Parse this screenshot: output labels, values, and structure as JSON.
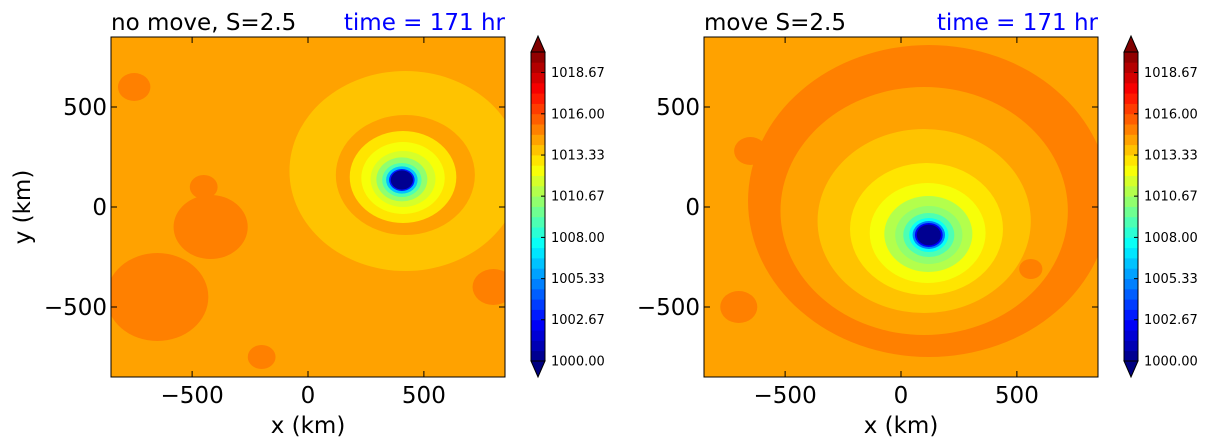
{
  "chart_data": [
    {
      "type": "contourf",
      "title_left": "no move, S=2.5",
      "title_right": "time = 171 hr",
      "title_right_color": "#0000ff",
      "xlabel": "x (km)",
      "ylabel": "y (km)",
      "xlim": [
        -850,
        850
      ],
      "ylim": [
        -850,
        850
      ],
      "xticks": [
        -500,
        0,
        500
      ],
      "yticks": [
        -500,
        0,
        500
      ],
      "xtick_labels": [
        "−500",
        "0",
        "500"
      ],
      "ytick_labels": [
        "−500",
        "0",
        "500"
      ],
      "background_value": 1014.3,
      "features": [
        {
          "kind": "ring",
          "x": 420,
          "y": 180,
          "r": 500,
          "value": 1013.9
        },
        {
          "kind": "ring",
          "x": 420,
          "y": 160,
          "r": 300,
          "value": 1014.4
        },
        {
          "kind": "ring",
          "x": 410,
          "y": 150,
          "r": 230,
          "value": 1013.3
        },
        {
          "kind": "ring",
          "x": 410,
          "y": 145,
          "r": 180,
          "value": 1012.5
        },
        {
          "kind": "ring",
          "x": 410,
          "y": 140,
          "r": 140,
          "value": 1011.5
        },
        {
          "kind": "ring",
          "x": 405,
          "y": 138,
          "r": 110,
          "value": 1010.3
        },
        {
          "kind": "ring",
          "x": 405,
          "y": 135,
          "r": 85,
          "value": 1008.8
        },
        {
          "kind": "ring",
          "x": 405,
          "y": 135,
          "r": 68,
          "value": 1006.5
        },
        {
          "kind": "ring",
          "x": 405,
          "y": 135,
          "r": 55,
          "value": 1003.2
        },
        {
          "kind": "ring",
          "x": 405,
          "y": 135,
          "r": 48,
          "value": 1000.5
        },
        {
          "kind": "blob",
          "x": -650,
          "y": -450,
          "r": 220,
          "value": 1015.0
        },
        {
          "kind": "blob",
          "x": -420,
          "y": -100,
          "r": 160,
          "value": 1015.0
        },
        {
          "kind": "blob",
          "x": -450,
          "y": 100,
          "r": 60,
          "value": 1015.0
        },
        {
          "kind": "blob",
          "x": -750,
          "y": 600,
          "r": 70,
          "value": 1015.0
        },
        {
          "kind": "blob",
          "x": -200,
          "y": -750,
          "r": 60,
          "value": 1015.0
        },
        {
          "kind": "blob",
          "x": 800,
          "y": -400,
          "r": 90,
          "value": 1015.0
        }
      ]
    },
    {
      "type": "contourf",
      "title_left": "move S=2.5",
      "title_right": "time = 171 hr",
      "title_right_color": "#0000ff",
      "xlabel": "x (km)",
      "ylabel": "",
      "xlim": [
        -850,
        850
      ],
      "ylim": [
        -850,
        850
      ],
      "xticks": [
        -500,
        0,
        500
      ],
      "yticks": [
        -500,
        0,
        500
      ],
      "xtick_labels": [
        "−500",
        "0",
        "500"
      ],
      "ytick_labels": [
        "−500",
        "0",
        "500"
      ],
      "background_value": 1014.3,
      "features": [
        {
          "kind": "ring",
          "x": 120,
          "y": 30,
          "r": 780,
          "value": 1015.1
        },
        {
          "kind": "ring",
          "x": 100,
          "y": -20,
          "r": 620,
          "value": 1014.4
        },
        {
          "kind": "ring",
          "x": 100,
          "y": -70,
          "r": 460,
          "value": 1013.9
        },
        {
          "kind": "ring",
          "x": 110,
          "y": -110,
          "r": 330,
          "value": 1012.8
        },
        {
          "kind": "ring",
          "x": 115,
          "y": -130,
          "r": 250,
          "value": 1012.0
        },
        {
          "kind": "ring",
          "x": 118,
          "y": -135,
          "r": 190,
          "value": 1011.2
        },
        {
          "kind": "ring",
          "x": 120,
          "y": -140,
          "r": 145,
          "value": 1010.3
        },
        {
          "kind": "ring",
          "x": 120,
          "y": -140,
          "r": 110,
          "value": 1009.3
        },
        {
          "kind": "ring",
          "x": 120,
          "y": -140,
          "r": 85,
          "value": 1007.8
        },
        {
          "kind": "ring",
          "x": 120,
          "y": -140,
          "r": 70,
          "value": 1005.3
        },
        {
          "kind": "ring",
          "x": 120,
          "y": -140,
          "r": 60,
          "value": 1002.5
        },
        {
          "kind": "ring",
          "x": 120,
          "y": -140,
          "r": 52,
          "value": 1000.5
        },
        {
          "kind": "blob",
          "x": -650,
          "y": 280,
          "r": 70,
          "value": 1015.1
        },
        {
          "kind": "blob",
          "x": -700,
          "y": -500,
          "r": 80,
          "value": 1015.1
        },
        {
          "kind": "blob",
          "x": 560,
          "y": -310,
          "r": 50,
          "value": 1015.1
        }
      ]
    }
  ],
  "colorbar": {
    "min": 1000.0,
    "max": 1020.0,
    "levels": 30,
    "tick_values": [
      1000.0,
      1002.67,
      1005.33,
      1008.0,
      1010.67,
      1013.33,
      1016.0,
      1018.67
    ],
    "tick_labels": [
      "1000.00",
      "1002.67",
      "1005.33",
      "1008.00",
      "1010.67",
      "1013.33",
      "1016.00",
      "1018.67"
    ],
    "colormap": "jet",
    "extend": "both"
  }
}
